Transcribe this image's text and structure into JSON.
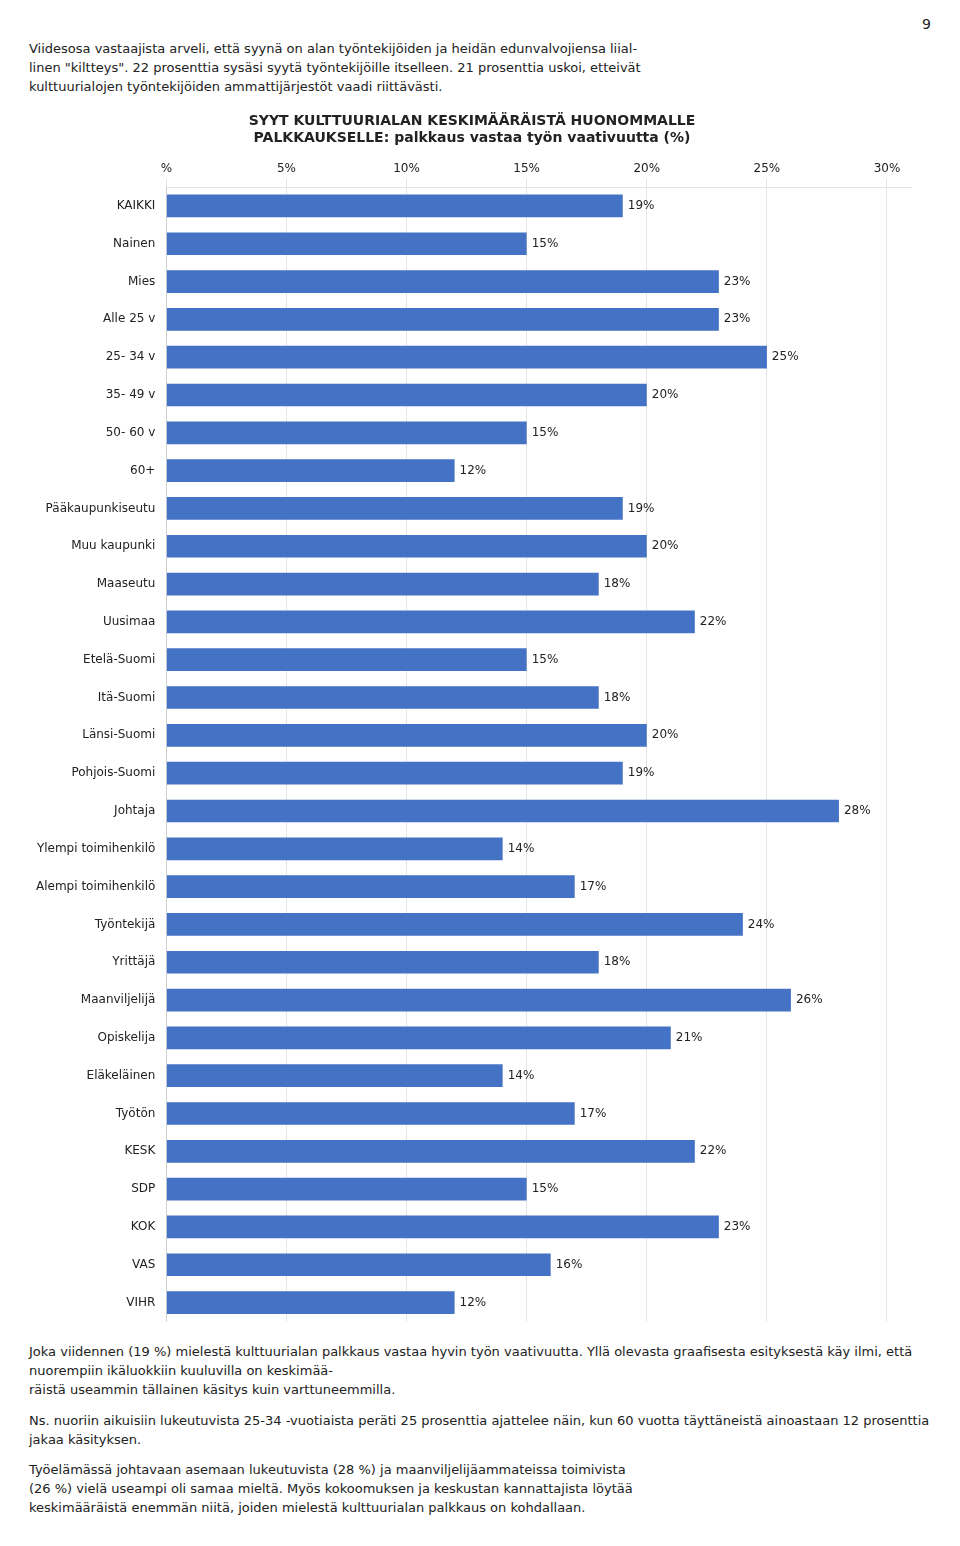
{
  "chart_data": {
    "type": "bar",
    "orientation": "horizontal",
    "title": [
      "SYYT KULTTUURIALAN KESKIMÄÄRÄISTÄ HUONOMMALLE",
      "PALKKAUKSELLE: palkkaus vastaa työn vaativuutta (%)"
    ],
    "annotations": [
      "9",
      "Viidesosa vastaajista arveli, että syynä on alan työntekijöiden ja heidän edunvalvojiensa liial-",
      "linen \"kiltteys\". 22 prosenttia sysäsi syytä työntekijöille itselleen. 21 prosenttia uskoi, etteivät",
      "kulttuurialojen työntekijöiden ammattijärjestöt vaadi riittävästi.",
      "Joka viidennen (19 %) mielestä kulttuurialan palkkaus vastaa hyvin työn vaativuutta. Yllä olevasta graafisesta esityksestä käy ilmi, että nuorempiin ikäluokkiin kuuluvilla on keskimää-\nräistä useammin tällainen käsitys kuin varttuneemmilla.",
      "Ns. nuoriin aikuisiin lukeutuvista 25-34 -vuotiaista peräti 25 prosenttia ajattelee näin, kun 60 vuotta täyttäneistä ainoastaan 12 prosenttia jakaa käsityksen.",
      "Työelämässä johtavaan asemaan lukeutuvista (28 %) ja maanviljelijäammateissa toimivista\n(26 %) vielä useampi oli samaa mieltä. Myös kokoomuksen ja keskustan kannattajista löytää\nkeskimääräistä enemmän niitä, joiden mielestä kulttuurialan palkkaus on kohdallaan."
    ],
    "categories": [
      "KAIKKI",
      "Nainen",
      "Mies",
      "Alle 25 v",
      "25- 34 v",
      "35- 49 v",
      "50- 60 v",
      "60+",
      "Pääkaupunkiseutu",
      "Muu kaupunki",
      "Maaseutu",
      "Uusimaa",
      "Etelä-Suomi",
      "Itä-Suomi",
      "Länsi-Suomi",
      "Pohjois-Suomi",
      "Johtaja",
      "Ylempi toimihenkilö",
      "Alempi toimihenkilö",
      "Työntekijä",
      "Yrittäjä",
      "Maanviljelijä",
      "Opiskelija",
      "Eläkeläinen",
      "Työtön",
      "KESK",
      "SDP",
      "KOK",
      "VAS",
      "VIHR"
    ],
    "values": [
      19,
      15,
      23,
      23,
      25,
      20,
      15,
      12,
      19,
      20,
      18,
      22,
      15,
      18,
      20,
      19,
      28,
      14,
      17,
      24,
      18,
      26,
      21,
      14,
      17,
      22,
      15,
      23,
      16,
      12
    ],
    "value_labels": [
      "19%",
      "15%",
      "23%",
      "23%",
      "25%",
      "20%",
      "15%",
      "12%",
      "19%",
      "20%",
      "18%",
      "22%",
      "15%",
      "18%",
      "20%",
      "19%",
      "28%",
      "14%",
      "17%",
      "24%",
      "18%",
      "26%",
      "21%",
      "14%",
      "17%",
      "22%",
      "15%",
      "23%",
      "16%",
      "12%"
    ],
    "data_labels": true,
    "color": "#4472C4",
    "xlim": [
      0,
      31
    ],
    "xticks": [
      {
        "value": 0,
        "label": "%"
      },
      {
        "value": 5,
        "label": "5%"
      },
      {
        "value": 10,
        "label": "10%"
      },
      {
        "value": 15,
        "label": "15%"
      },
      {
        "value": 20,
        "label": "20%"
      },
      {
        "value": 25,
        "label": "25%"
      },
      {
        "value": 30,
        "label": "30%"
      }
    ],
    "grid": true
  }
}
